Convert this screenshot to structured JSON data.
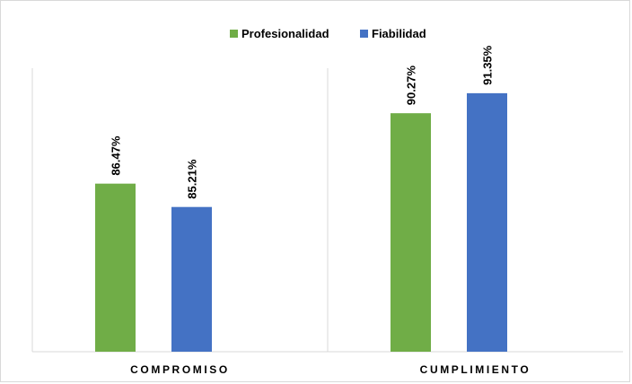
{
  "chart_data": {
    "type": "bar",
    "title": "",
    "xlabel": "",
    "ylabel": "",
    "categories": [
      "COMPROMISO",
      "CUMPLIMIENTO"
    ],
    "series": [
      {
        "name": "Profesionalidad",
        "color": "#70ad47",
        "values": [
          86.47,
          90.27
        ],
        "labels": [
          "86.47%",
          "90.27%"
        ]
      },
      {
        "name": "Fiabilidad",
        "color": "#4472c4",
        "values": [
          85.21,
          91.35
        ],
        "labels": [
          "85.21%",
          "91.35%"
        ]
      }
    ],
    "ylim": [
      77.4,
      92.7
    ],
    "y_axis_visible": false,
    "grid": false,
    "legend_position": "top-center"
  }
}
